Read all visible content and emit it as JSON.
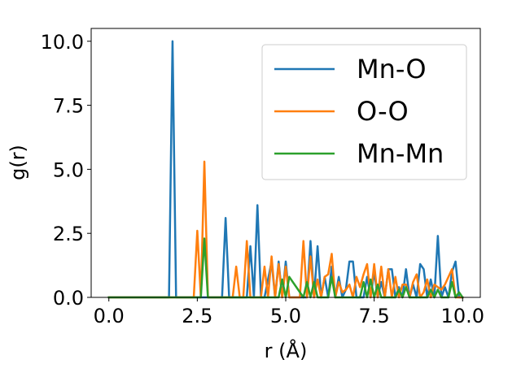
{
  "chart_data": {
    "type": "line",
    "xlabel": "r (Å)",
    "ylabel": "g(r)",
    "xlim": [
      -0.5,
      10.5
    ],
    "ylim": [
      0,
      10.5
    ],
    "xticks": [
      0.0,
      2.5,
      5.0,
      7.5,
      10.0
    ],
    "xtick_labels": [
      "0.0",
      "2.5",
      "5.0",
      "7.5",
      "10.0"
    ],
    "yticks": [
      0.0,
      2.5,
      5.0,
      7.5,
      10.0
    ],
    "ytick_labels": [
      "0.0",
      "2.5",
      "5.0",
      "7.5",
      "10.0"
    ],
    "grid": false,
    "legend_position": "upper right",
    "series": [
      {
        "name": "Mn-O",
        "color": "#1f77b4",
        "x": [
          0.0,
          1.7,
          1.8,
          1.9,
          3.2,
          3.3,
          3.4,
          3.9,
          4.0,
          4.1,
          4.2,
          4.3,
          4.4,
          4.6,
          4.7,
          4.8,
          4.9,
          5.0,
          5.1,
          5.6,
          5.7,
          5.8,
          5.9,
          6.0,
          6.1,
          6.2,
          6.3,
          6.4,
          6.5,
          6.6,
          6.7,
          6.8,
          6.9,
          7.0,
          7.1,
          7.2,
          7.3,
          7.4,
          7.5,
          7.6,
          7.7,
          7.8,
          7.9,
          8.0,
          8.1,
          8.2,
          8.3,
          8.4,
          8.5,
          8.6,
          8.7,
          8.8,
          8.9,
          9.0,
          9.1,
          9.2,
          9.3,
          9.4,
          9.5,
          9.6,
          9.7,
          9.8,
          9.9,
          10.0
        ],
        "y": [
          0.0,
          0.0,
          10.0,
          0.0,
          0.0,
          3.1,
          0.0,
          0.0,
          2.0,
          0.0,
          3.6,
          0.0,
          0.0,
          1.4,
          0.0,
          1.4,
          0.0,
          1.4,
          0.0,
          0.0,
          2.2,
          0.0,
          2.0,
          0.0,
          0.8,
          0.0,
          1.2,
          0.0,
          0.8,
          0.0,
          0.3,
          1.4,
          1.4,
          0.0,
          0.0,
          0.0,
          0.8,
          0.0,
          1.0,
          0.0,
          0.6,
          0.0,
          1.1,
          1.1,
          0.0,
          0.4,
          0.0,
          1.1,
          0.0,
          0.5,
          0.0,
          1.3,
          1.1,
          0.0,
          0.7,
          0.0,
          2.4,
          0.0,
          0.4,
          0.0,
          1.0,
          1.4,
          0.0,
          0.0
        ]
      },
      {
        "name": "O-O",
        "color": "#ff7f0e",
        "x": [
          0.0,
          2.4,
          2.5,
          2.6,
          2.7,
          2.8,
          3.5,
          3.6,
          3.7,
          3.8,
          3.9,
          4.0,
          4.3,
          4.4,
          4.5,
          4.6,
          4.7,
          4.8,
          4.9,
          5.0,
          5.1,
          5.4,
          5.5,
          5.6,
          5.7,
          5.8,
          5.9,
          6.0,
          6.1,
          6.2,
          6.3,
          6.4,
          6.5,
          6.6,
          6.7,
          6.8,
          6.9,
          7.0,
          7.1,
          7.2,
          7.3,
          7.4,
          7.5,
          7.6,
          7.7,
          7.8,
          7.9,
          8.0,
          8.1,
          8.2,
          8.3,
          8.4,
          8.5,
          8.6,
          8.7,
          8.8,
          8.9,
          9.0,
          9.1,
          9.2,
          9.3,
          9.4,
          9.5,
          9.6,
          9.7,
          9.8,
          9.9,
          10.0
        ],
        "y": [
          0.0,
          0.0,
          2.6,
          0.0,
          5.3,
          0.0,
          0.0,
          1.2,
          0.0,
          0.0,
          2.2,
          0.0,
          0.0,
          1.2,
          0.0,
          1.6,
          0.0,
          1.3,
          0.0,
          1.2,
          0.0,
          0.0,
          2.2,
          0.0,
          1.6,
          0.0,
          0.7,
          0.0,
          0.8,
          0.9,
          1.7,
          0.0,
          0.6,
          0.2,
          0.3,
          0.5,
          0.0,
          0.8,
          0.4,
          0.9,
          1.3,
          0.0,
          1.3,
          0.0,
          1.2,
          0.0,
          1.1,
          0.0,
          0.8,
          0.0,
          0.5,
          0.5,
          0.0,
          0.6,
          0.9,
          0.0,
          0.2,
          0.7,
          0.0,
          0.5,
          0.4,
          0.3,
          0.5,
          0.8,
          1.1,
          0.0,
          0.0,
          0.0
        ]
      },
      {
        "name": "Mn-Mn",
        "color": "#2ca02c",
        "x": [
          0.0,
          2.6,
          2.7,
          2.8,
          4.8,
          4.9,
          5.0,
          5.1,
          5.5,
          5.6,
          5.7,
          5.8,
          5.9,
          6.2,
          6.3,
          6.4,
          6.5,
          7.1,
          7.2,
          7.3,
          7.4,
          7.5,
          7.6,
          7.7,
          7.8,
          8.1,
          8.2,
          8.3,
          8.4,
          8.5,
          9.0,
          9.1,
          9.2,
          9.3,
          9.4,
          9.6,
          9.7,
          9.8,
          9.9,
          10.0
        ],
        "y": [
          0.0,
          0.0,
          2.3,
          0.0,
          0.0,
          0.7,
          0.0,
          0.8,
          0.0,
          0.6,
          0.0,
          0.6,
          0.0,
          0.0,
          0.8,
          0.0,
          0.0,
          0.0,
          0.6,
          0.0,
          0.7,
          0.0,
          0.5,
          0.0,
          0.0,
          0.0,
          0.3,
          0.0,
          0.4,
          0.0,
          0.0,
          0.3,
          0.0,
          0.3,
          0.0,
          0.0,
          0.6,
          0.0,
          0.2,
          0.0
        ]
      }
    ]
  }
}
